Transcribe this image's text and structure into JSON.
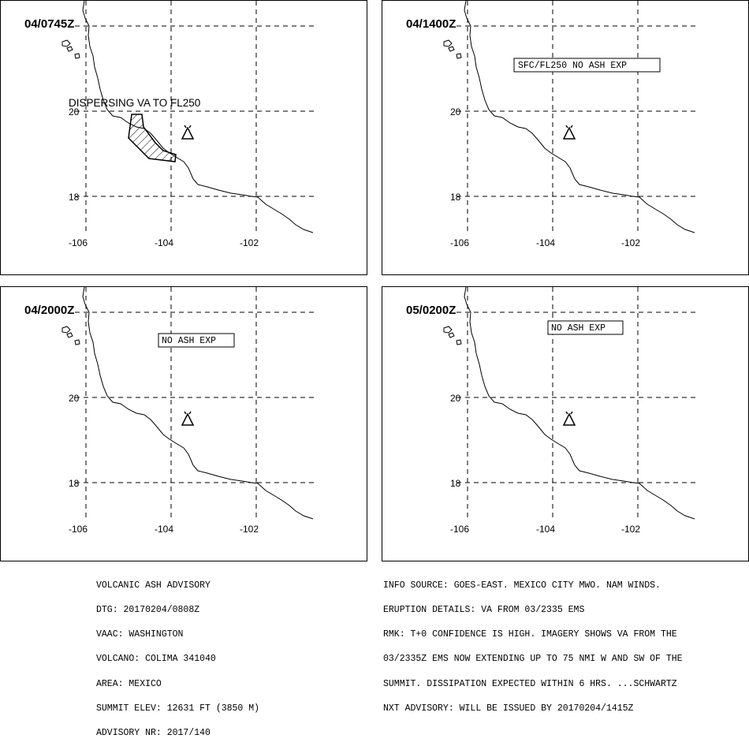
{
  "panels": [
    {
      "time": "04/0745Z",
      "annotation": "DISPERSING VA TO FL250",
      "annotation_boxed": false,
      "ash_polygon": true
    },
    {
      "time": "04/1400Z",
      "annotation": "SFC/FL250 NO ASH EXP",
      "annotation_boxed": true,
      "ash_polygon": false
    },
    {
      "time": "04/2000Z",
      "annotation": "NO ASH EXP",
      "annotation_boxed": true,
      "ash_polygon": false
    },
    {
      "time": "05/0200Z",
      "annotation": "NO ASH EXP",
      "annotation_boxed": true,
      "ash_polygon": false
    }
  ],
  "axes": {
    "lon_labels": [
      "-106",
      "-104",
      "-102"
    ],
    "lat_labels": [
      "20",
      "18"
    ]
  },
  "volcano_icon": "volcano-icon",
  "advisory_left": [
    "VOLCANIC ASH ADVISORY",
    "DTG: 20170204/0808Z",
    "VAAC: WASHINGTON",
    "VOLCANO: COLIMA 341040",
    "AREA: MEXICO",
    "SUMMIT ELEV: 12631 FT (3850 M)",
    "ADVISORY NR: 2017/140"
  ],
  "advisory_right": [
    "INFO SOURCE: GOES-EAST. MEXICO CITY MWO. NAM WINDS.",
    "ERUPTION DETAILS: VA FROM 03/2335 EMS",
    "RMK: T+0 CONFIDENCE IS HIGH. IMAGERY SHOWS VA FROM THE",
    "03/2335Z EMS NOW EXTENDING UP TO 75 NMI W AND SW OF THE",
    "SUMMIT. DISSIPATION EXPECTED WITHIN 6 HRS. ...SCHWARTZ",
    "NXT ADVISORY: WILL BE ISSUED BY 20170204/1415Z"
  ]
}
